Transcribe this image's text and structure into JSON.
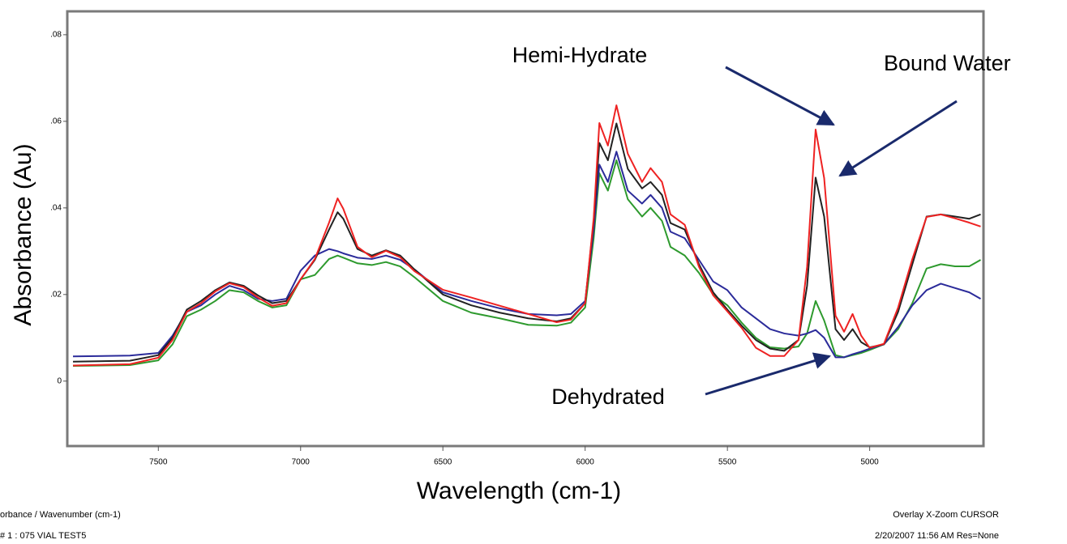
{
  "chart_data": {
    "type": "line",
    "x_label": "Wavelength (cm-1)",
    "y_label": "Absorbance (Au)",
    "annotations": [
      "Hemi-Hydrate",
      "Bound Water",
      "Dehydrated"
    ],
    "xlim": [
      7820,
      4600
    ],
    "ylim": [
      -0.015,
      0.0854
    ],
    "xticks": [
      7500,
      7000,
      6500,
      6000,
      5500,
      5000
    ],
    "yticks": [
      0,
      {
        "value": 0.02,
        "label": ".02"
      },
      {
        "value": 0.04,
        "label": ".04"
      },
      {
        "value": 0.06,
        "label": ".06"
      },
      {
        "value": 0.08,
        "label": ".08"
      }
    ],
    "x": [
      7800,
      7600,
      7500,
      7450,
      7400,
      7350,
      7300,
      7250,
      7200,
      7150,
      7100,
      7050,
      7000,
      6950,
      6900,
      6870,
      6850,
      6800,
      6750,
      6700,
      6650,
      6600,
      6500,
      6400,
      6300,
      6200,
      6100,
      6050,
      6000,
      5970,
      5950,
      5920,
      5890,
      5850,
      5800,
      5770,
      5730,
      5700,
      5650,
      5600,
      5550,
      5500,
      5450,
      5400,
      5350,
      5300,
      5250,
      5220,
      5190,
      5160,
      5120,
      5090,
      5060,
      5030,
      5000,
      4950,
      4900,
      4850,
      4800,
      4750,
      4700,
      4650,
      4610
    ],
    "series": [
      {
        "color": "#2e9a2e",
        "values": [
          0.0035,
          0.0037,
          0.0048,
          0.0085,
          0.015,
          0.0165,
          0.0185,
          0.021,
          0.0205,
          0.0185,
          0.017,
          0.0175,
          0.0235,
          0.0245,
          0.0282,
          0.029,
          0.0285,
          0.0272,
          0.0268,
          0.0275,
          0.0265,
          0.024,
          0.0185,
          0.0158,
          0.0145,
          0.013,
          0.0128,
          0.0135,
          0.017,
          0.033,
          0.048,
          0.044,
          0.051,
          0.042,
          0.038,
          0.04,
          0.037,
          0.031,
          0.029,
          0.025,
          0.02,
          0.0175,
          0.0135,
          0.01,
          0.0078,
          0.0075,
          0.008,
          0.011,
          0.0185,
          0.014,
          0.006,
          0.0055,
          0.006,
          0.0065,
          0.0072,
          0.0085,
          0.012,
          0.018,
          0.026,
          0.027,
          0.0265,
          0.0265,
          0.028
        ]
      },
      {
        "color": "#2b2b9a",
        "values": [
          0.0057,
          0.0059,
          0.0065,
          0.0105,
          0.016,
          0.0175,
          0.02,
          0.022,
          0.021,
          0.019,
          0.0185,
          0.019,
          0.0255,
          0.029,
          0.0305,
          0.03,
          0.0295,
          0.0285,
          0.0282,
          0.029,
          0.028,
          0.0258,
          0.0205,
          0.0185,
          0.0168,
          0.0155,
          0.0152,
          0.0155,
          0.0185,
          0.035,
          0.05,
          0.046,
          0.053,
          0.044,
          0.041,
          0.043,
          0.04,
          0.0345,
          0.033,
          0.028,
          0.023,
          0.021,
          0.017,
          0.0145,
          0.012,
          0.011,
          0.0105,
          0.011,
          0.0118,
          0.01,
          0.0055,
          0.0055,
          0.0062,
          0.0068,
          0.0075,
          0.0085,
          0.0125,
          0.0175,
          0.021,
          0.0225,
          0.0215,
          0.0205,
          0.019
        ]
      },
      {
        "color": "#222222",
        "values": [
          0.0045,
          0.0047,
          0.006,
          0.01,
          0.0165,
          0.0185,
          0.021,
          0.0228,
          0.022,
          0.0198,
          0.018,
          0.0185,
          0.0235,
          0.028,
          0.035,
          0.039,
          0.0375,
          0.0305,
          0.029,
          0.0302,
          0.029,
          0.0258,
          0.02,
          0.0175,
          0.0158,
          0.0145,
          0.0138,
          0.0145,
          0.018,
          0.037,
          0.055,
          0.051,
          0.0595,
          0.049,
          0.0445,
          0.046,
          0.043,
          0.0365,
          0.035,
          0.027,
          0.0205,
          0.0165,
          0.0128,
          0.0095,
          0.0075,
          0.007,
          0.0095,
          0.022,
          0.047,
          0.038,
          0.012,
          0.0095,
          0.012,
          0.009,
          0.0078,
          0.0085,
          0.016,
          0.027,
          0.038,
          0.0385,
          0.038,
          0.0375,
          0.0385
        ]
      },
      {
        "color": "#ee2222",
        "values": [
          0.0036,
          0.0039,
          0.0054,
          0.0095,
          0.016,
          0.018,
          0.0207,
          0.0226,
          0.0217,
          0.0193,
          0.0174,
          0.018,
          0.0235,
          0.0282,
          0.0366,
          0.0422,
          0.0398,
          0.031,
          0.0286,
          0.0301,
          0.0286,
          0.0254,
          0.0211,
          0.0193,
          0.0174,
          0.0155,
          0.0136,
          0.0142,
          0.018,
          0.0376,
          0.0596,
          0.0544,
          0.0637,
          0.0525,
          0.046,
          0.0492,
          0.046,
          0.0385,
          0.0361,
          0.0264,
          0.0198,
          0.0161,
          0.0123,
          0.0077,
          0.0058,
          0.0058,
          0.0095,
          0.0264,
          0.0581,
          0.0469,
          0.0151,
          0.0114,
          0.0155,
          0.0105,
          0.0077,
          0.0086,
          0.017,
          0.0282,
          0.0379,
          0.0385,
          0.0376,
          0.0366,
          0.0357
        ]
      }
    ]
  },
  "footer": {
    "left": [
      "orbance / Wavenumber (cm-1)",
      "# 1 : 075 VIAL TEST5"
    ],
    "right": [
      "Overlay X-Zoom CURSOR",
      "2/20/2007  11:56 AM  Res=None"
    ]
  }
}
